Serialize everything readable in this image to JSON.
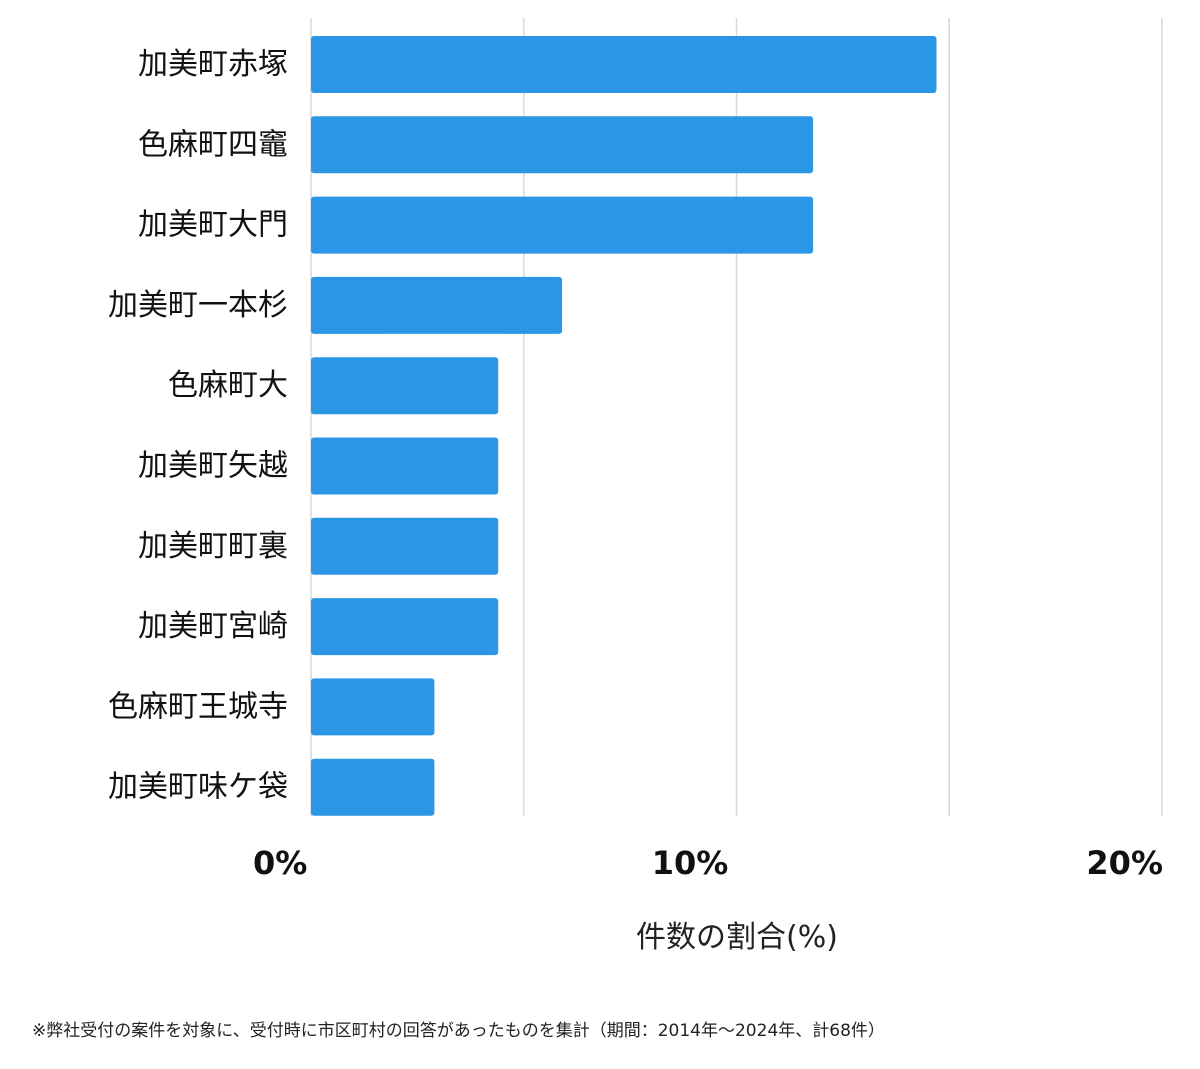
{
  "chart_data": {
    "type": "bar",
    "orientation": "horizontal",
    "categories": [
      "加美町赤塚",
      "色麻町四竈",
      "加美町大門",
      "加美町一本杉",
      "色麻町大",
      "加美町矢越",
      "加美町町裏",
      "加美町宮崎",
      "色麻町王城寺",
      "加美町味ケ袋"
    ],
    "values": [
      14.7,
      11.8,
      11.8,
      5.9,
      4.4,
      4.4,
      4.4,
      4.4,
      2.9,
      2.9
    ],
    "xlim": [
      0,
      20
    ],
    "xticks": [
      0,
      10,
      20
    ],
    "xtick_labels": [
      "0%",
      "10%",
      "20%"
    ],
    "xlabel": "件数の割合(%)",
    "ylabel": "",
    "grid": true,
    "bar_color": "#2b95e6",
    "grid_color": "#d9d9d9"
  },
  "footnote": "※弊社受付の案件を対象に、受付時に市区町村の回答があったものを集計（期間：2014年～2024年、計68件）"
}
